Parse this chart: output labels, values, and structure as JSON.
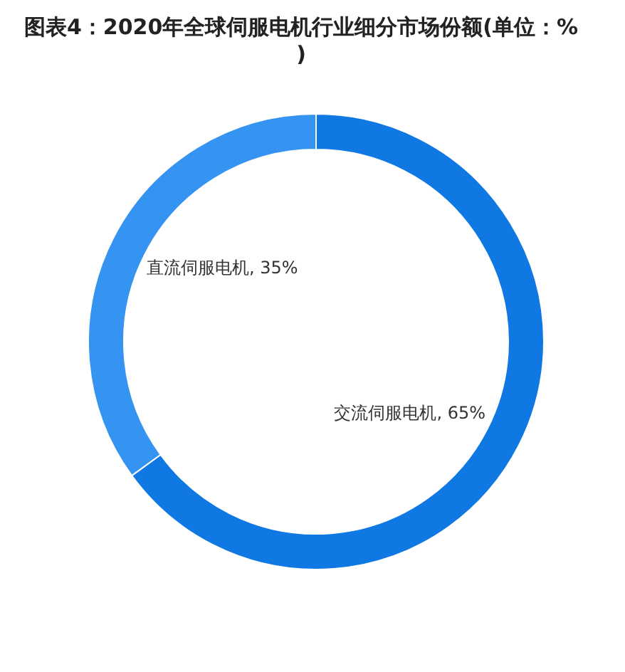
{
  "chart_data": {
    "type": "donut",
    "title": "图表4：2020年全球伺服电机行业细分市场份额(单位：%)",
    "categories": [
      "交流伺服电机",
      "直流伺服电机"
    ],
    "values": [
      65,
      35
    ],
    "colors": [
      "#0f78e3",
      "#3594f2"
    ],
    "value_labels": [
      ", 65%",
      ", 35%"
    ]
  }
}
